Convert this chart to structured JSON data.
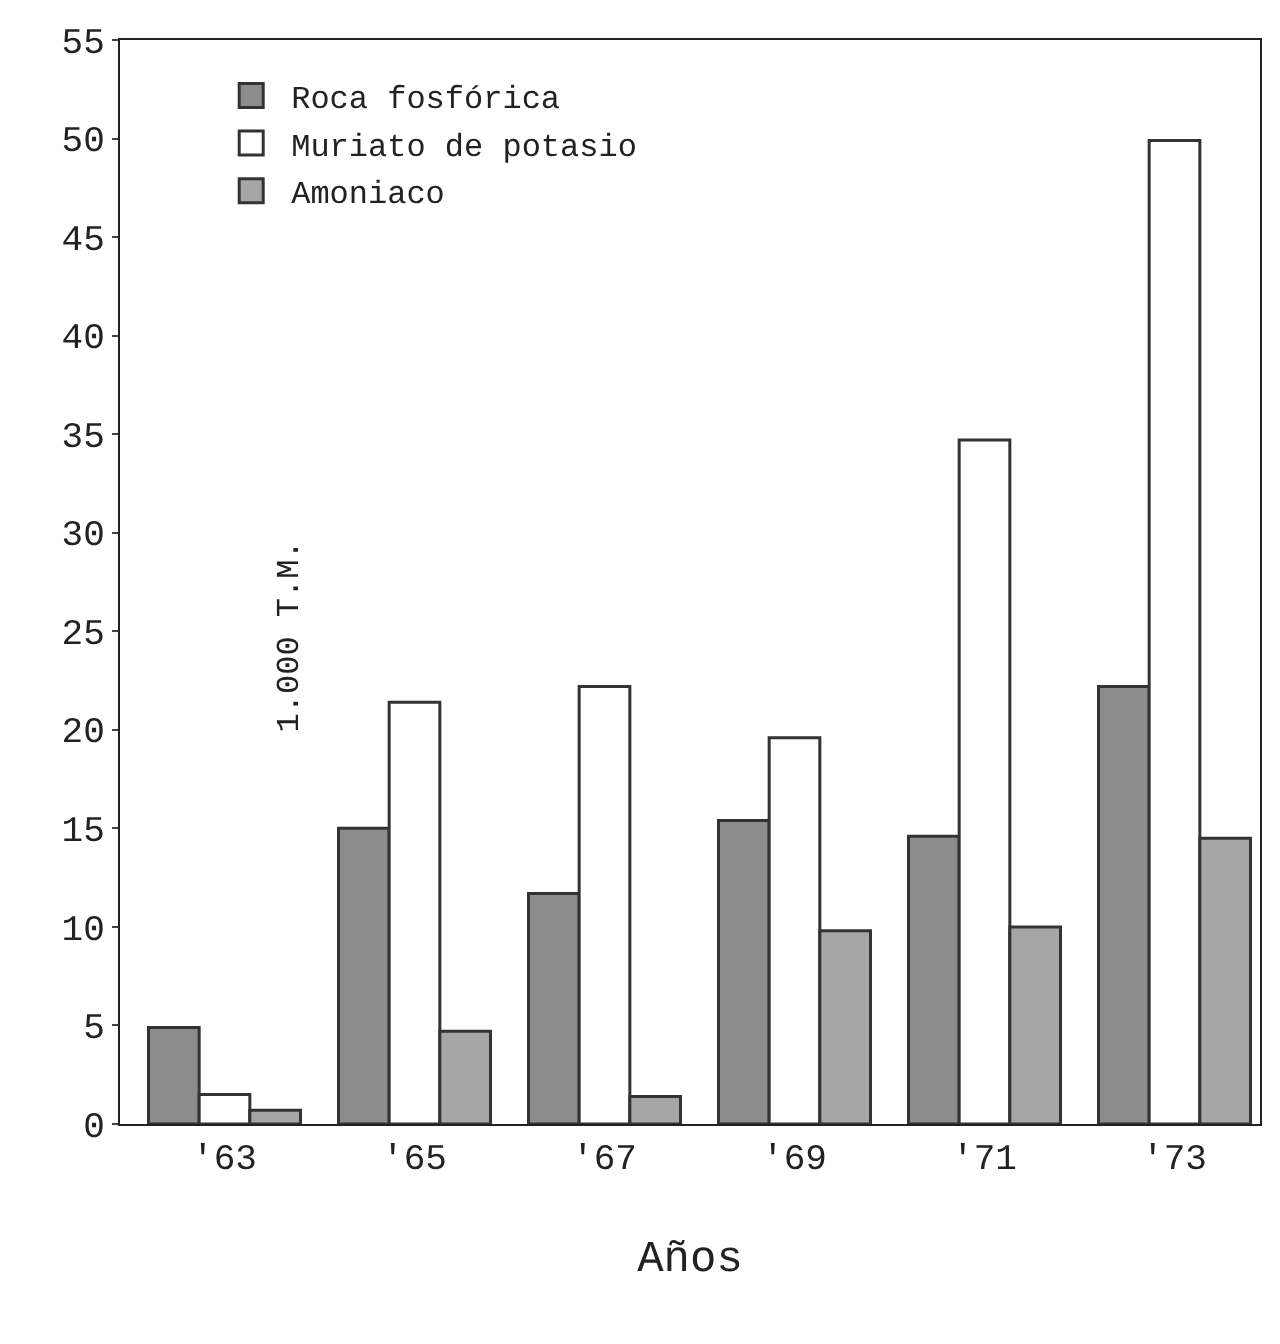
{
  "chart_data": {
    "type": "bar",
    "categories": [
      "'63",
      "'65",
      "'67",
      "'69",
      "'71",
      "'73"
    ],
    "xlabel": "Años",
    "ylabel": "1.000 T.M.",
    "series": [
      {
        "name": "Roca fosfórica",
        "color": "#8c8c8c",
        "values": [
          4.9,
          15.0,
          11.7,
          15.4,
          14.6,
          22.2
        ]
      },
      {
        "name": "Muriato de potasio",
        "color": "#ffffff",
        "values": [
          1.5,
          21.4,
          22.2,
          19.6,
          34.7,
          49.9
        ]
      },
      {
        "name": "Amoniaco",
        "color": "#a6a6a6",
        "values": [
          0.7,
          4.7,
          1.4,
          9.8,
          10.0,
          14.5
        ]
      }
    ],
    "ylim": [
      0,
      55
    ],
    "yticks": [
      0,
      5,
      10,
      15,
      20,
      25,
      30,
      35,
      40,
      45,
      50,
      55
    ],
    "grid": false,
    "legend": "top left"
  }
}
